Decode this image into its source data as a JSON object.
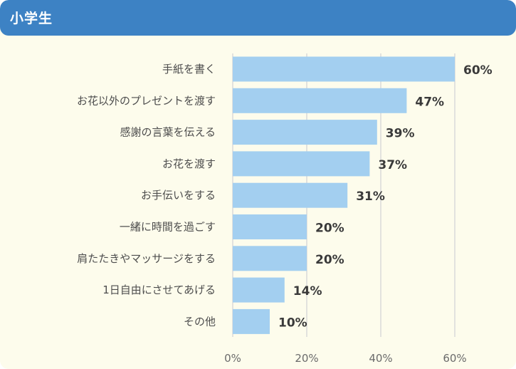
{
  "header": {
    "title": "小学生"
  },
  "colors": {
    "header_bg": "#3d82c4",
    "bar": "#a3cff0",
    "grid": "#d9d9d9",
    "card_bg": "#fdfcec"
  },
  "chart_data": {
    "type": "bar",
    "orientation": "horizontal",
    "title": "小学生",
    "categories": [
      "手紙を書く",
      "お花以外のプレゼントを渡す",
      "感謝の言葉を伝える",
      "お花を渡す",
      "お手伝いをする",
      "一緒に時間を過ごす",
      "肩たたきやマッサージをする",
      "1日自由にさせてあげる",
      "その他"
    ],
    "values": [
      60,
      47,
      39,
      37,
      31,
      20,
      20,
      14,
      10
    ],
    "value_labels": [
      "60%",
      "47%",
      "39%",
      "37%",
      "31%",
      "20%",
      "20%",
      "14%",
      "10%"
    ],
    "xlim": [
      0,
      60
    ],
    "xticks": [
      0,
      20,
      40,
      60
    ],
    "xtick_labels": [
      "0%",
      "20%",
      "40%",
      "60%"
    ],
    "grid": true,
    "xlabel": "",
    "ylabel": ""
  }
}
